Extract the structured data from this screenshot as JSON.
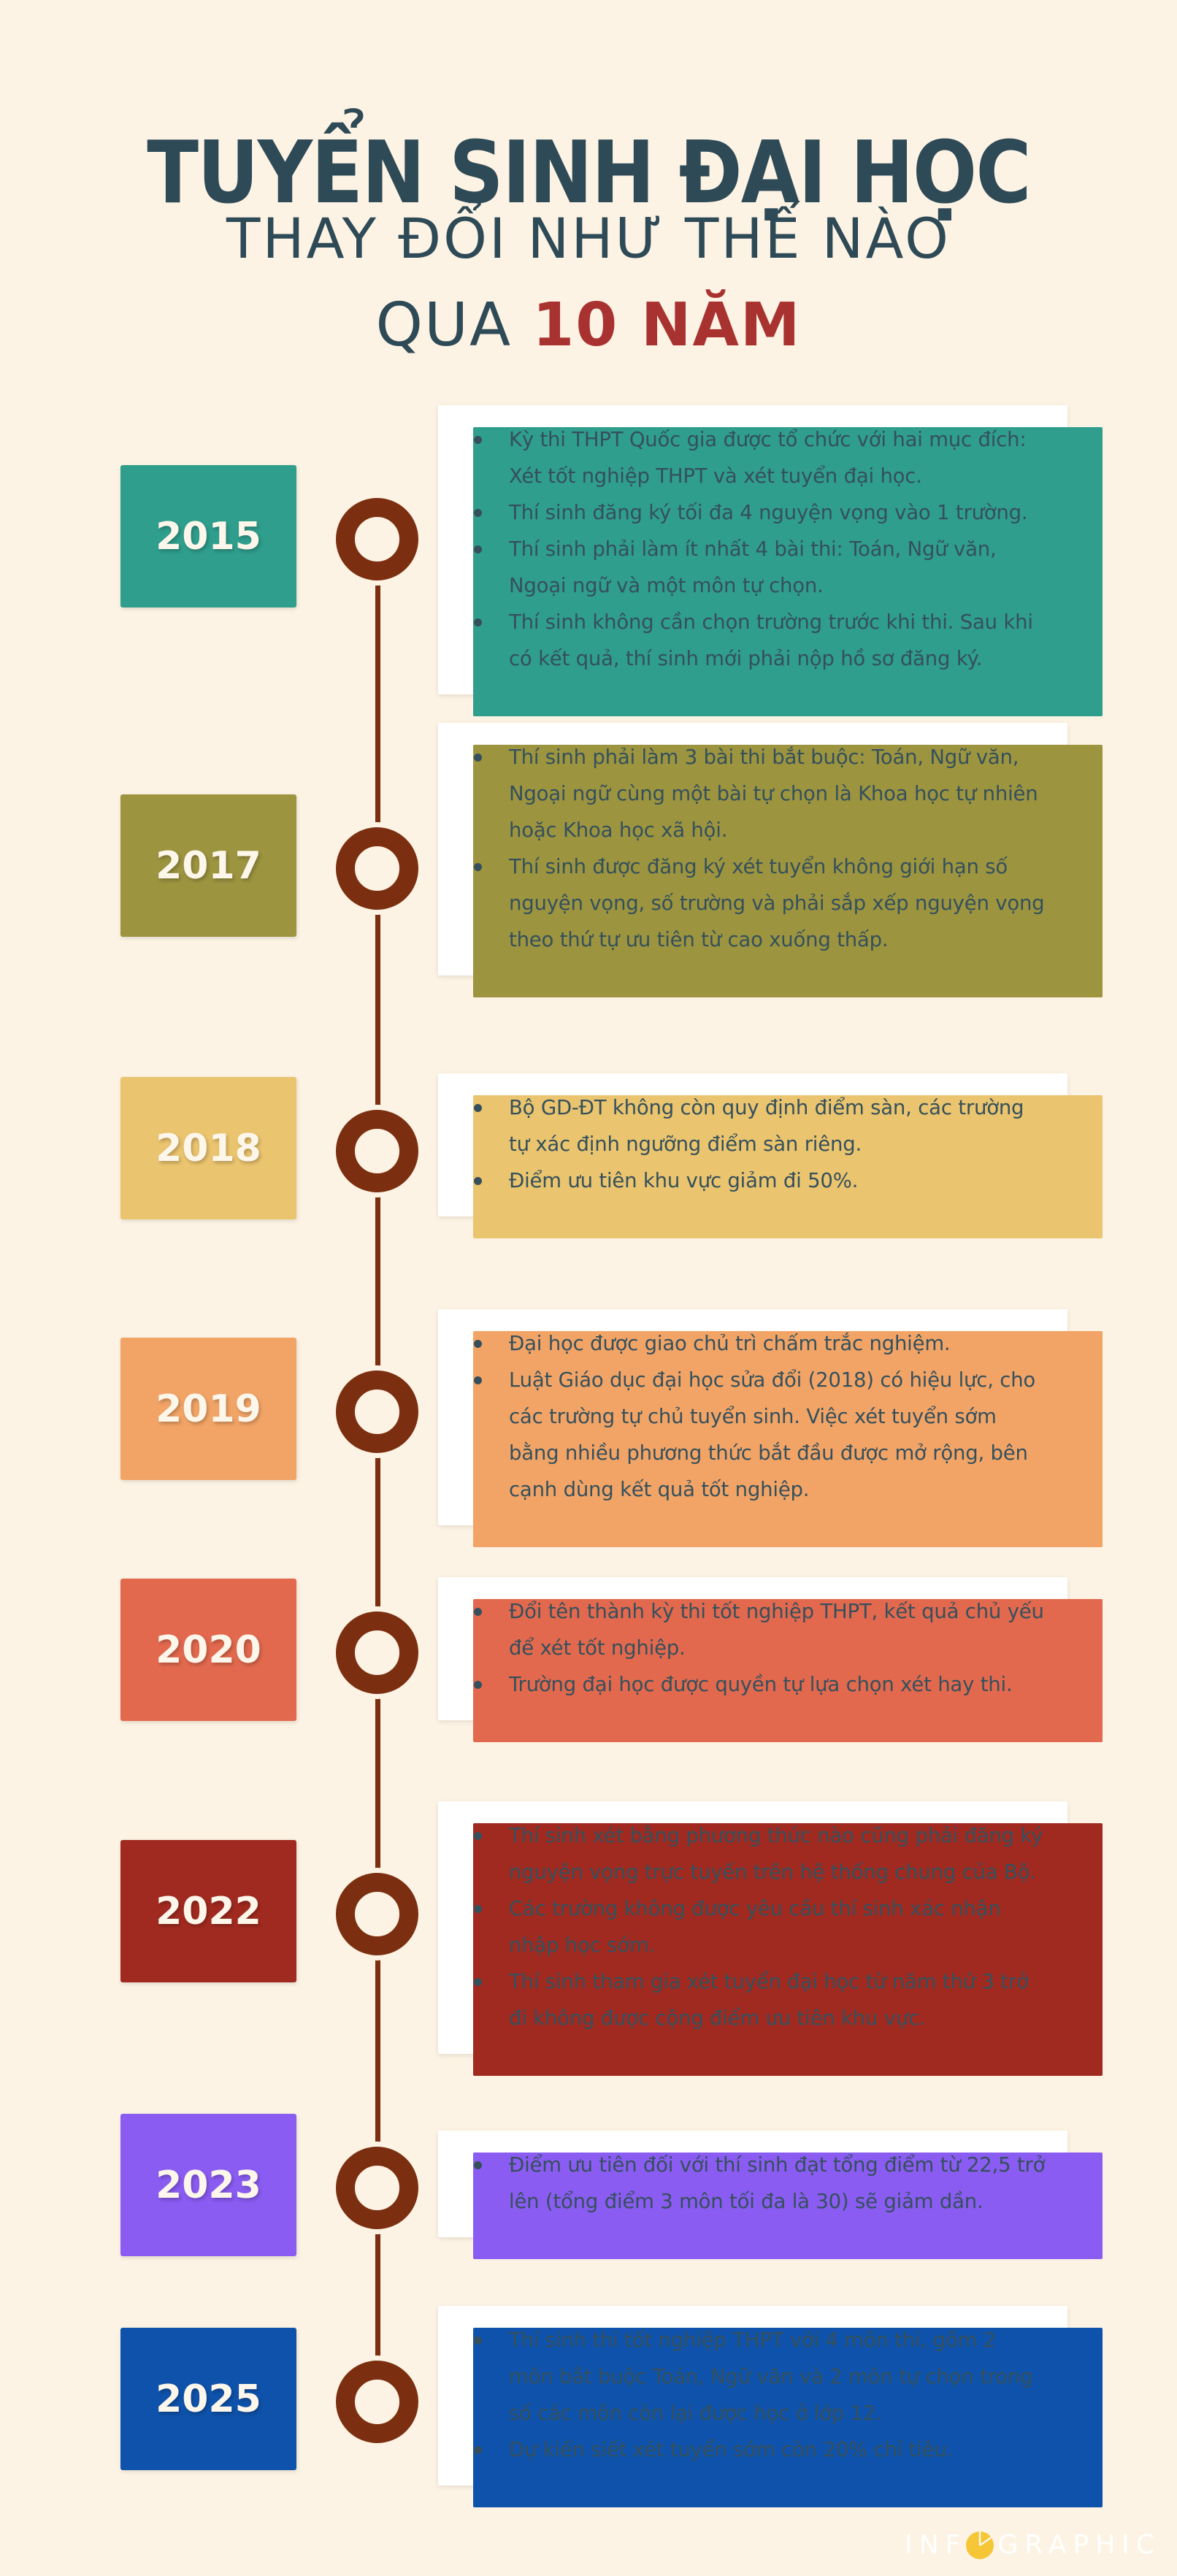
{
  "header": {
    "title": "TUYỂN SINH ĐẠI HỌC",
    "subtitle": "THAY ĐỔI NHƯ THẾ NÀO",
    "subtitle2_prefix": "QUA ",
    "subtitle2_highlight": "10 NĂM"
  },
  "colors": {
    "background": "#fdf3e4",
    "title_text": "#2e4a57",
    "highlight_red": "#a83230",
    "timeline_brown": "#7b2f10",
    "card_text": "#35505c",
    "watermark_yellow": "#f5c636"
  },
  "timeline": {
    "entries": [
      {
        "year": "2015",
        "color": "#2f9e8d",
        "bullets": [
          "Kỳ thi THPT Quốc gia được tổ chức với hai mục đích: Xét tốt nghiệp THPT và xét tuyển đại học.",
          "Thí sinh đăng ký tối đa 4 nguyện vọng vào 1 trường.",
          "Thí sinh phải làm ít nhất 4 bài thi: Toán, Ngữ văn, Ngoại ngữ và một môn tự chọn.",
          "Thí sinh không cần chọn trường trước khi thi. Sau khi có kết quả, thí sinh mới phải nộp hồ sơ đăng ký."
        ]
      },
      {
        "year": "2017",
        "color": "#9c943f",
        "bullets": [
          "Thí sinh phải làm 3 bài thi bắt buộc: Toán, Ngữ văn, Ngoại ngữ cùng một bài tự chọn là Khoa học tự nhiên hoặc Khoa học xã hội.",
          "Thí sinh được đăng ký xét tuyển không giới hạn số nguyện vọng, số trường và phải sắp xếp nguyện vọng theo thứ tự ưu tiên từ cao xuống thấp."
        ]
      },
      {
        "year": "2018",
        "color": "#eac46e",
        "bullets": [
          "Bộ GD-ĐT không còn quy định điểm sàn, các trường tự xác định ngưỡng điểm sàn riêng.",
          "Điểm ưu tiên khu vực giảm đi 50%."
        ]
      },
      {
        "year": "2019",
        "color": "#f2a466",
        "bullets": [
          "Đại học được giao chủ trì chấm trắc nghiệm.",
          "Luật Giáo dục đại học sửa đổi (2018) có hiệu lực, cho các trường tự chủ tuyển sinh. Việc xét tuyển sớm bằng nhiều phương thức bắt đầu được mở rộng, bên cạnh dùng kết quả tốt nghiệp."
        ]
      },
      {
        "year": "2020",
        "color": "#e2694e",
        "bullets": [
          "Đổi tên thành kỳ thi tốt nghiệp THPT, kết quả chủ yếu để xét tốt nghiệp.",
          "Trường đại học được quyền tự lựa chọn xét hay thi."
        ]
      },
      {
        "year": "2022",
        "color": "#a12a20",
        "bullets": [
          "Thí sinh xét bằng phương thức nào cũng phải đăng ký nguyện vọng trực tuyến trên hệ thống chung của Bộ.",
          "Các trường không được yêu cầu thí sinh xác nhận nhập học sớm.",
          "Thí sinh tham gia xét tuyển đại học từ năm thứ 3 trở đi không được cộng điểm ưu tiên khu vực."
        ]
      },
      {
        "year": "2023",
        "color": "#8a5cf2",
        "bullets": [
          "Điểm ưu tiên đối với thí sinh đạt tổng điểm từ 22,5 trở lên (tổng điểm 3 môn tối đa là 30) sẽ giảm dần."
        ]
      },
      {
        "year": "2025",
        "color": "#0e52ab",
        "bullets": [
          "Thí sinh thi tốt nghiệp THPT với 4 môn thi, gồm 2 môn bắt buộc Toán, Ngữ văn và 2 môn tự chọn trong số các môn còn lại được học ở lớp 12.",
          "Dự kiến siết xét tuyển sớm còn 20% chỉ tiêu."
        ]
      }
    ]
  },
  "watermark": {
    "prefix": "INF",
    "suffix": "GRAPHIC"
  }
}
